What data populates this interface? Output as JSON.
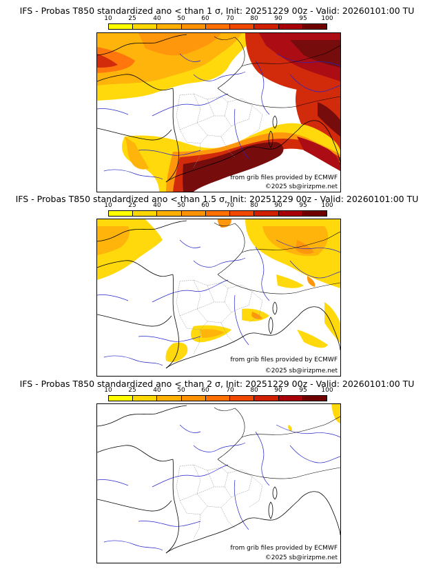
{
  "colorbar": {
    "labels": [
      "10",
      "25",
      "40",
      "50",
      "60",
      "70",
      "80",
      "90",
      "95",
      "100"
    ],
    "colors": [
      "#ffff00",
      "#ffd700",
      "#ffb000",
      "#ff9200",
      "#ff7000",
      "#f04800",
      "#d02000",
      "#a80008",
      "#700000"
    ]
  },
  "panels": [
    {
      "title": "IFS - Probas T850  standardized ano < than 1 σ, Init: 20251229 00z - Valid: 20260101:00 TU",
      "credit1": "from grib files provided by ECMWF",
      "credit2": "©2025 sb@irizpme.net"
    },
    {
      "title": "IFS - Probas T850  standardized ano < than 1.5 σ, Init: 20251229 00z - Valid: 20260101:00 TU",
      "credit1": "from grib files provided by ECMWF",
      "credit2": "©2025 sb@irizpme.net"
    },
    {
      "title": "IFS - Probas T850  standardized ano < than 2 σ, Init: 20251229 00z - Valid: 20260101:00 TU",
      "credit1": "from grib files provided by ECMWF",
      "credit2": "©2025 sb@irizpme.net"
    }
  ]
}
